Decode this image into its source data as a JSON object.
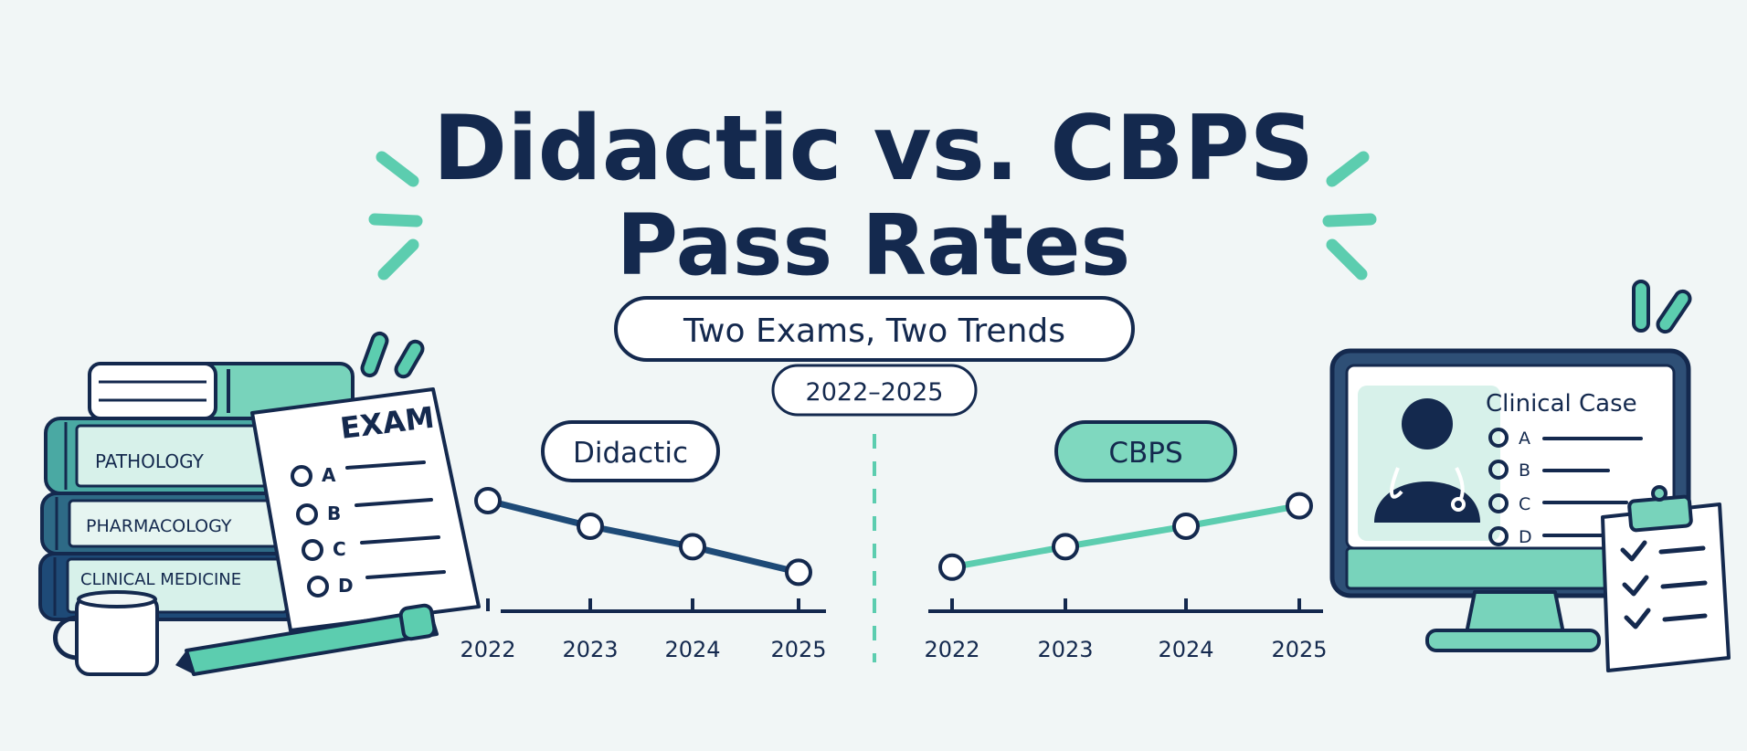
{
  "title_line1": "Didactic vs. CBPS",
  "title_line2": "Pass Rates",
  "subtitle": "Two Exams, Two Trends",
  "date_range": "2022–2025",
  "colors": {
    "navy": "#14294e",
    "didactic_line": "#1e4a77",
    "teal": "#5ccdaf",
    "teal_light": "#d7f1ea",
    "background": "#f1f6f6"
  },
  "illustration_left": {
    "books": [
      "PATHOLOGY",
      "PHARMACOLOGY",
      "CLINICAL MEDICINE"
    ],
    "exam_title": "EXAM",
    "exam_options": [
      "A",
      "B",
      "C",
      "D"
    ]
  },
  "illustration_right": {
    "monitor_title": "Clinical Case",
    "case_options": [
      "A",
      "B",
      "C",
      "D"
    ]
  },
  "chart_data": [
    {
      "type": "line",
      "label": "Didactic",
      "x": [
        "2022",
        "2023",
        "2024",
        "2025"
      ],
      "values": [
        4,
        3,
        2.2,
        1.2
      ],
      "ylim": [
        0,
        5
      ],
      "color": "#1e4a77",
      "trend": "decreasing",
      "grid": false
    },
    {
      "type": "line",
      "label": "CBPS",
      "x": [
        "2022",
        "2023",
        "2024",
        "2025"
      ],
      "values": [
        1.4,
        2.2,
        3.0,
        3.8
      ],
      "ylim": [
        0,
        5
      ],
      "color": "#5ccdaf",
      "trend": "increasing",
      "grid": false
    }
  ]
}
